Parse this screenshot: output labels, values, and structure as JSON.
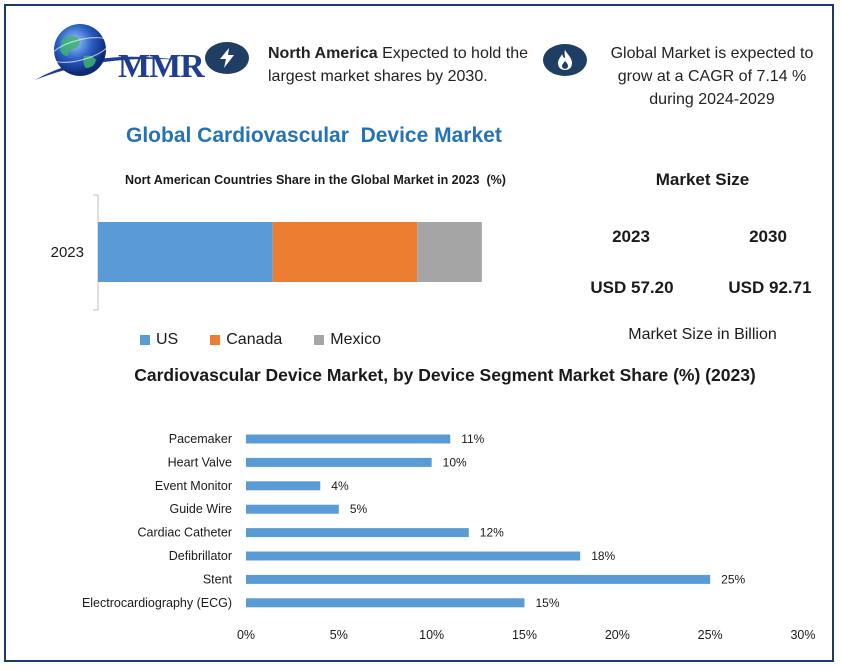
{
  "logo": {
    "text": "MMR"
  },
  "highlights": [
    {
      "icon": "lightning-icon",
      "bold": "North America",
      "text": " Expected to hold the largest market shares by 2030."
    },
    {
      "icon": "flame-icon",
      "text": "Global Market is expected to grow at a CAGR of 7.14 % during 2024-2029"
    }
  ],
  "main_title": "Global Cardiovascular  Device Market",
  "market_size": {
    "title": "Market Size",
    "years": [
      "2023",
      "2030"
    ],
    "values": [
      "USD 57.20",
      "USD 92.71"
    ],
    "unit_label": "Market Size in Billion"
  },
  "colors": {
    "us": "#5b9bd5",
    "canada": "#ed7d31",
    "mexico": "#a5a5a5",
    "bar": "#5b9bd5",
    "title": "#2473b8",
    "icon_bg": "#1f3e64"
  },
  "chart_data": [
    {
      "type": "bar",
      "orientation": "horizontal-stacked",
      "title": "Nort American Countries Share in the Global Market in 2023  (%)",
      "categories": [
        "2023"
      ],
      "series": [
        {
          "name": "US",
          "values": [
            46
          ]
        },
        {
          "name": "Canada",
          "values": [
            38
          ]
        },
        {
          "name": "Mexico",
          "values": [
            17
          ]
        }
      ],
      "legend": "bottom"
    },
    {
      "type": "bar",
      "orientation": "horizontal",
      "title": "Cardiovascular Device Market, by Device Segment Market Share (%) (2023)",
      "categories": [
        "Pacemaker",
        "Heart Valve",
        "Event Monitor",
        "Guide Wire",
        "Cardiac Catheter",
        "Defibrillator",
        "Stent",
        "Electrocardiography (ECG)"
      ],
      "values": [
        11,
        10,
        4,
        5,
        12,
        18,
        25,
        15
      ],
      "data_labels": [
        "11%",
        "10%",
        "4%",
        "5%",
        "12%",
        "18%",
        "25%",
        "15%"
      ],
      "xlim": [
        0,
        30
      ],
      "xticks": [
        "0%",
        "5%",
        "10%",
        "15%",
        "20%",
        "25%",
        "30%"
      ],
      "grid": false
    }
  ]
}
